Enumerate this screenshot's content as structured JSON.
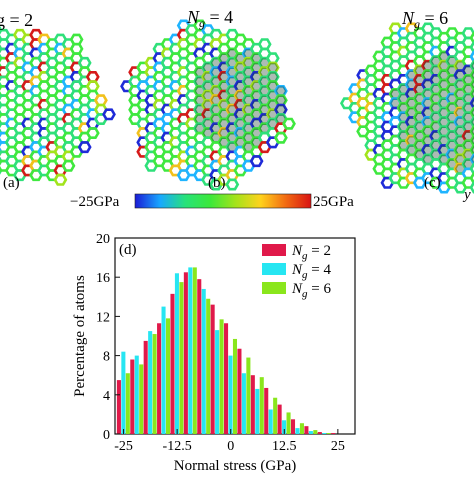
{
  "panels": [
    {
      "label_prefix": "N",
      "label_suffix": "g = 2",
      "letter": "(a)"
    },
    {
      "label_prefix": "N",
      "label_suffix": "g = 4",
      "letter": "(b)"
    },
    {
      "label_prefix": "N",
      "label_suffix": "g = 6",
      "letter": "(c)"
    }
  ],
  "edge_letter": "y",
  "colorbar": {
    "min_label": "−25GPa",
    "max_label": "25GPa",
    "colors": [
      "#1b1bd6",
      "#19a8ff",
      "#27e27a",
      "#3ce83a",
      "#a4e31b",
      "#ffd21c",
      "#f26a12",
      "#d81313"
    ]
  },
  "chart_data": {
    "type": "bar",
    "panel_label": "(d)",
    "xlabel": "Normal stress (GPa)",
    "ylabel": "Percentage of atoms",
    "xlim": [
      -27,
      29
    ],
    "ylim": [
      0,
      20
    ],
    "bin_width": 3.125,
    "xticks": [
      -25,
      -12.5,
      0,
      12.5,
      25
    ],
    "xtick_labels": [
      "-25",
      "-12.5",
      "0",
      "12.5",
      "25"
    ],
    "yticks": [
      0,
      4,
      8,
      12,
      16,
      20
    ],
    "ytick_labels": [
      "0",
      "4",
      "8",
      "12",
      "16",
      "20"
    ],
    "bin_centers": [
      -25,
      -21.875,
      -18.75,
      -15.625,
      -12.5,
      -9.375,
      -6.25,
      -3.125,
      0,
      3.125,
      6.25,
      9.375,
      12.5,
      15.625,
      18.75,
      21.875,
      25
    ],
    "series": [
      {
        "name": "2",
        "color": "#e0194a",
        "values": [
          5.5,
          7.6,
          9.5,
          11.3,
          14.3,
          16.5,
          15.8,
          13.2,
          11.3,
          8.7,
          6.0,
          4.7,
          3.0,
          1.5,
          0.8,
          0.2,
          0.1
        ]
      },
      {
        "name": "4",
        "color": "#26e6f2",
        "values": [
          8.4,
          8.0,
          10.5,
          13.0,
          16.4,
          17.0,
          14.8,
          10.6,
          8.0,
          6.2,
          4.6,
          2.5,
          1.4,
          0.6,
          0.3,
          0.1,
          0.0
        ]
      },
      {
        "name": "6",
        "color": "#8ae61c",
        "values": [
          6.2,
          7.1,
          10.2,
          11.8,
          15.5,
          17.0,
          13.8,
          11.7,
          9.7,
          7.8,
          5.8,
          3.7,
          2.2,
          1.1,
          0.4,
          0.1,
          0.0
        ]
      }
    ],
    "legend_prefix": "N",
    "legend_subscript": "g",
    "legend_eq": " = ",
    "legend_position": "top-right"
  }
}
